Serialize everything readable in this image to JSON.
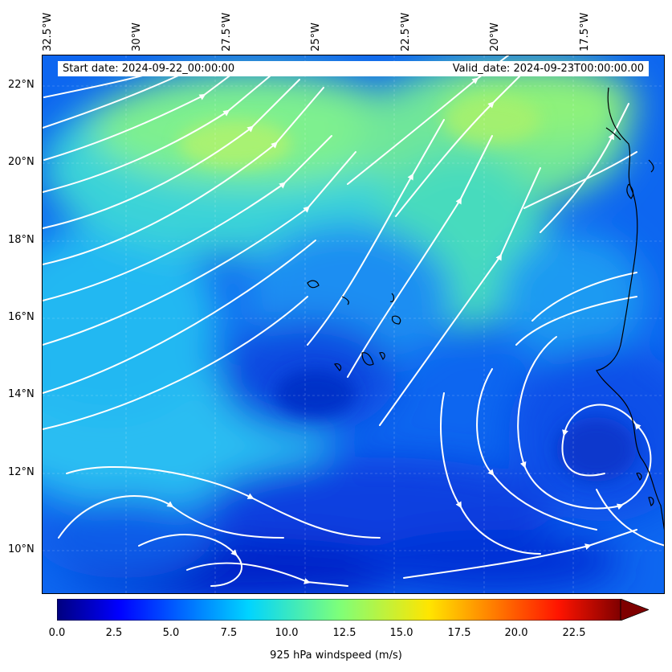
{
  "header": {
    "start_date": "Start date: 2024-09-22_00:00:00",
    "valid_date": "Valid_date: 2024-09-23T00:00:00.00"
  },
  "axes": {
    "lon_labels": [
      "32.5°W",
      "30°W",
      "27.5°W",
      "25°W",
      "22.5°W",
      "20°W",
      "17.5°W"
    ],
    "lat_labels": [
      "22°N",
      "20°N",
      "18°N",
      "16°N",
      "14°N",
      "12°N",
      "10°N"
    ]
  },
  "colorbar": {
    "label": "925 hPa windspeed (m/s)",
    "ticks": [
      "0.0",
      "2.5",
      "5.0",
      "7.5",
      "10.0",
      "12.5",
      "15.0",
      "17.5",
      "20.0",
      "22.5"
    ],
    "range": [
      0,
      25
    ],
    "extend": "max",
    "colormap": "jet"
  },
  "map": {
    "field": "925 hPa windspeed with streamlines",
    "streamline_color": "#ffffff",
    "coastline_color": "#000000"
  }
}
